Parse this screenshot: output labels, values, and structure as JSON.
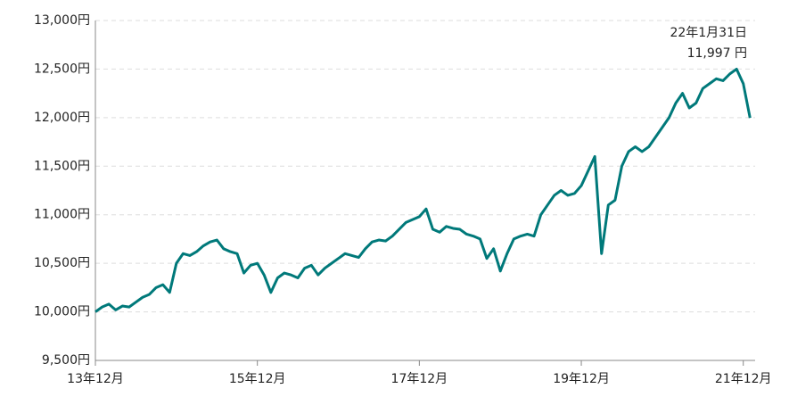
{
  "chart_data": {
    "type": "line",
    "categories": [
      "13年12月",
      null,
      null,
      null,
      null,
      null,
      null,
      null,
      null,
      null,
      null,
      null,
      null,
      null,
      null,
      null,
      null,
      null,
      null,
      null,
      null,
      null,
      null,
      null,
      "15年12月",
      null,
      null,
      null,
      null,
      null,
      null,
      null,
      null,
      null,
      null,
      null,
      null,
      null,
      null,
      null,
      null,
      null,
      null,
      null,
      null,
      null,
      null,
      null,
      "17年12月",
      null,
      null,
      null,
      null,
      null,
      null,
      null,
      null,
      null,
      null,
      null,
      null,
      null,
      null,
      null,
      null,
      null,
      null,
      null,
      null,
      null,
      null,
      null,
      "19年12月",
      null,
      null,
      null,
      null,
      null,
      null,
      null,
      null,
      null,
      null,
      null,
      null,
      null,
      null,
      null,
      null,
      null,
      null,
      null,
      null,
      null,
      null,
      null,
      "21年12月",
      null
    ],
    "series": [
      {
        "color": "#00797a",
        "values": [
          10000,
          10050,
          10080,
          10020,
          10060,
          10050,
          10100,
          10150,
          10180,
          10250,
          10280,
          10200,
          10500,
          10600,
          10580,
          10620,
          10680,
          10720,
          10740,
          10650,
          10620,
          10600,
          10400,
          10480,
          10500,
          10380,
          10200,
          10350,
          10400,
          10380,
          10350,
          10450,
          10480,
          10380,
          10450,
          10500,
          10550,
          10600,
          10580,
          10560,
          10650,
          10720,
          10740,
          10730,
          10780,
          10850,
          10920,
          10950,
          10980,
          11060,
          10850,
          10820,
          10880,
          10860,
          10850,
          10800,
          10780,
          10750,
          10550,
          10650,
          10420,
          10600,
          10750,
          10780,
          10800,
          10780,
          11000,
          11100,
          11200,
          11250,
          11200,
          11220,
          11300,
          11450,
          11600,
          10600,
          11100,
          11150,
          11500,
          11650,
          11700,
          11650,
          11700,
          11800,
          11900,
          12000,
          12150,
          12250,
          12100,
          12150,
          12300,
          12350,
          12400,
          12380,
          12450,
          12500,
          12350,
          11997
        ],
        "value_labels": [
          null,
          null,
          null,
          null,
          null,
          null,
          null,
          null,
          null,
          null,
          null,
          null,
          null,
          null,
          null,
          null,
          null,
          null,
          null,
          null,
          null,
          null,
          null,
          null,
          null,
          null,
          null,
          null,
          null,
          null,
          null,
          null,
          null,
          null,
          null,
          null,
          null,
          null,
          null,
          null,
          null,
          null,
          null,
          null,
          null,
          null,
          null,
          null,
          null,
          null,
          null,
          null,
          null,
          null,
          null,
          null,
          null,
          null,
          null,
          null,
          null,
          null,
          null,
          null,
          null,
          null,
          null,
          null,
          null,
          null,
          null,
          null,
          null,
          null,
          null,
          null,
          null,
          null,
          null,
          null,
          null,
          null,
          null,
          null,
          null,
          null,
          null,
          null,
          null,
          null,
          null,
          null,
          null,
          null,
          null,
          null,
          null,
          "11,997 円"
        ]
      }
    ],
    "annotation": "22年1月31日",
    "ylim": [
      9500,
      13000
    ],
    "yticks": [
      {
        "value": 9500,
        "label": "9,500円"
      },
      {
        "value": 10000,
        "label": "10,000円"
      },
      {
        "value": 10500,
        "label": "10,500円"
      },
      {
        "value": 11000,
        "label": "11,000円"
      },
      {
        "value": 11500,
        "label": "11,500円"
      },
      {
        "value": 12000,
        "label": "12,000円"
      },
      {
        "value": 12500,
        "label": "12,500円"
      },
      {
        "value": 13000,
        "label": "13,000円"
      }
    ],
    "grid": true
  }
}
